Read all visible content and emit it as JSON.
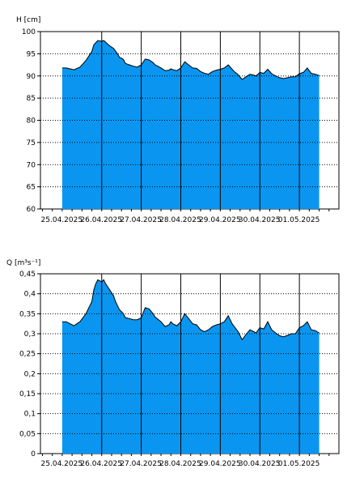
{
  "chart_data": [
    {
      "type": "area",
      "ylabel": "H [cm]",
      "ylim": [
        60,
        100
      ],
      "y_ticks": [
        "60",
        "65",
        "70",
        "75",
        "80",
        "85",
        "90",
        "95",
        "100"
      ],
      "x_tick_labels": [
        "25.04.2025",
        "26.04.2025",
        "27.04.2025",
        "28.04.2025",
        "29.04.2025",
        "30.04.2025",
        "01.05.2025"
      ],
      "grid": true,
      "fill_color": "#0a96f0",
      "series": [
        {
          "x": [
            0,
            0.1,
            0.2,
            0.3,
            0.45,
            0.6,
            0.75,
            0.8,
            0.85,
            0.9,
            1.0,
            1.05,
            1.1,
            1.2,
            1.3,
            1.35,
            1.4,
            1.45,
            1.5,
            1.55,
            1.6,
            1.7,
            1.8,
            1.9,
            2.0,
            2.1,
            2.2,
            2.3,
            2.35,
            2.4,
            2.5,
            2.6,
            2.7,
            2.75,
            2.8,
            2.9,
            3.0,
            3.1,
            3.2,
            3.3,
            3.4,
            3.5,
            3.6,
            3.7,
            3.8,
            3.9,
            4.0,
            4.1,
            4.2,
            4.3,
            4.35,
            4.45,
            4.55,
            4.65,
            4.75,
            4.85,
            4.9,
            5.0,
            5.1,
            5.2,
            5.3,
            5.4,
            5.5,
            5.6,
            5.7,
            5.8,
            5.9,
            6.0,
            6.1,
            6.2,
            6.3,
            6.4,
            6.5
          ],
          "y": [
            91.8,
            91.8,
            91.6,
            91.4,
            92.0,
            93.5,
            95.5,
            97.0,
            97.5,
            98.0,
            97.8,
            98.0,
            97.6,
            96.8,
            96.2,
            95.6,
            95.0,
            94.2,
            94.0,
            93.7,
            92.8,
            92.5,
            92.2,
            92.0,
            92.5,
            93.8,
            93.6,
            93.0,
            92.5,
            92.3,
            91.8,
            91.2,
            91.3,
            91.6,
            91.4,
            91.2,
            91.8,
            93.2,
            92.5,
            91.8,
            91.7,
            91.0,
            90.6,
            90.4,
            91.0,
            91.3,
            91.5,
            91.8,
            92.5,
            91.5,
            91.0,
            90.3,
            89.2,
            89.8,
            90.4,
            90.2,
            90.0,
            90.8,
            90.6,
            91.5,
            90.5,
            90.0,
            89.6,
            89.4,
            89.6,
            89.8,
            89.8,
            90.5,
            90.8,
            91.8,
            90.6,
            90.4,
            90.1
          ]
        }
      ]
    },
    {
      "type": "area",
      "ylabel": "Q [m³s⁻¹]",
      "ylim": [
        0,
        0.45
      ],
      "y_ticks": [
        "0",
        "0,05",
        "0,1",
        "0,15",
        "0,2",
        "0,25",
        "0,3",
        "0,35",
        "0,4",
        "0,45"
      ],
      "x_tick_labels": [
        "25.04.2025",
        "26.04.2025",
        "27.04.2025",
        "28.04.2025",
        "29.04.2025",
        "30.04.2025",
        "01.05.2025"
      ],
      "grid": true,
      "fill_color": "#0a96f0",
      "series": [
        {
          "x": [
            0,
            0.1,
            0.2,
            0.3,
            0.45,
            0.6,
            0.75,
            0.8,
            0.85,
            0.9,
            1.0,
            1.05,
            1.1,
            1.2,
            1.3,
            1.35,
            1.4,
            1.45,
            1.5,
            1.55,
            1.6,
            1.7,
            1.8,
            1.9,
            2.0,
            2.1,
            2.2,
            2.3,
            2.35,
            2.4,
            2.5,
            2.6,
            2.7,
            2.75,
            2.8,
            2.9,
            3.0,
            3.1,
            3.2,
            3.3,
            3.4,
            3.5,
            3.6,
            3.7,
            3.8,
            3.9,
            4.0,
            4.1,
            4.2,
            4.3,
            4.35,
            4.45,
            4.55,
            4.65,
            4.75,
            4.85,
            4.9,
            5.0,
            5.1,
            5.2,
            5.3,
            5.4,
            5.5,
            5.6,
            5.7,
            5.8,
            5.9,
            6.0,
            6.1,
            6.2,
            6.3,
            6.4,
            6.5
          ],
          "y": [
            0.33,
            0.33,
            0.325,
            0.32,
            0.33,
            0.35,
            0.38,
            0.41,
            0.425,
            0.435,
            0.43,
            0.435,
            0.425,
            0.41,
            0.395,
            0.38,
            0.37,
            0.36,
            0.355,
            0.35,
            0.34,
            0.338,
            0.335,
            0.335,
            0.34,
            0.365,
            0.362,
            0.35,
            0.342,
            0.338,
            0.33,
            0.318,
            0.322,
            0.33,
            0.325,
            0.32,
            0.33,
            0.35,
            0.338,
            0.325,
            0.322,
            0.31,
            0.305,
            0.31,
            0.318,
            0.322,
            0.325,
            0.33,
            0.345,
            0.325,
            0.318,
            0.305,
            0.285,
            0.298,
            0.31,
            0.305,
            0.302,
            0.315,
            0.312,
            0.33,
            0.31,
            0.302,
            0.295,
            0.292,
            0.296,
            0.3,
            0.3,
            0.315,
            0.32,
            0.33,
            0.31,
            0.308,
            0.302
          ]
        }
      ]
    }
  ]
}
